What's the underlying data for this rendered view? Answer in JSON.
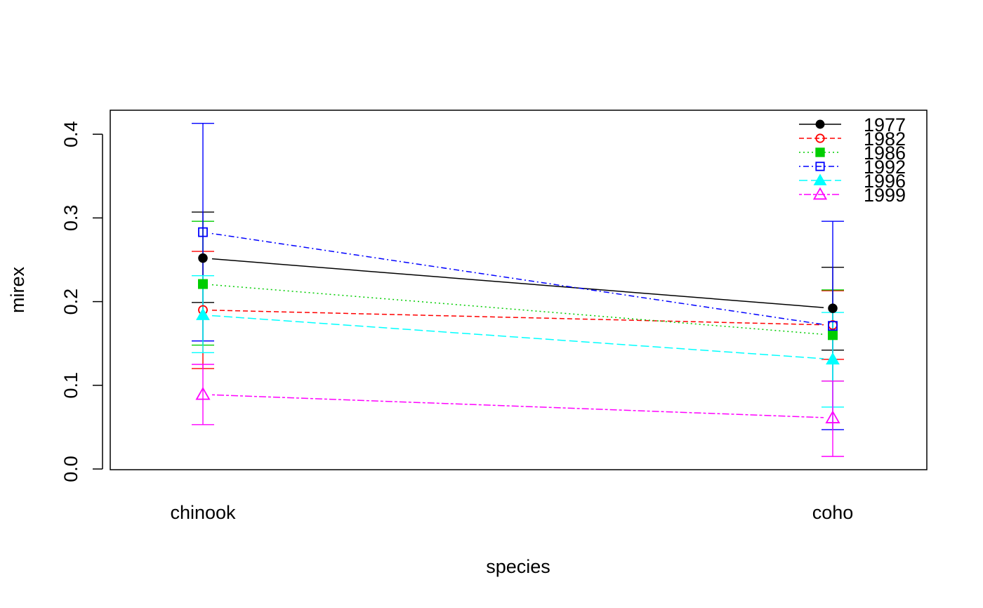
{
  "chart_data": {
    "type": "line",
    "xlabel": "species",
    "ylabel": "mirex",
    "categories": [
      "chinook",
      "coho"
    ],
    "ylim": [
      0,
      0.4
    ],
    "y_ticks": [
      "0.0",
      "0.1",
      "0.2",
      "0.3",
      "0.4"
    ],
    "grid": false,
    "legend_position": "top-right",
    "series": [
      {
        "name": "1977",
        "color": "#000000",
        "marker": "filled-circle",
        "line_style": "solid",
        "values": [
          0.252,
          0.192
        ],
        "lower": [
          0.199,
          0.142
        ],
        "upper": [
          0.307,
          0.241
        ]
      },
      {
        "name": "1982",
        "color": "#ff0000",
        "marker": "open-circle",
        "line_style": "dashed",
        "values": [
          0.19,
          0.172
        ],
        "lower": [
          0.12,
          0.131
        ],
        "upper": [
          0.26,
          0.213
        ]
      },
      {
        "name": "1986",
        "color": "#00cd00",
        "marker": "filled-square",
        "line_style": "dotted",
        "values": [
          0.221,
          0.16
        ],
        "lower": [
          0.148,
          0.105
        ],
        "upper": [
          0.296,
          0.214
        ]
      },
      {
        "name": "1992",
        "color": "#0000ff",
        "marker": "open-square",
        "line_style": "dotdash",
        "values": [
          0.283,
          0.171
        ],
        "lower": [
          0.153,
          0.047
        ],
        "upper": [
          0.413,
          0.296
        ]
      },
      {
        "name": "1996",
        "color": "#00ffff",
        "marker": "filled-triangle",
        "line_style": "longdash",
        "values": [
          0.184,
          0.131
        ],
        "lower": [
          0.139,
          0.074
        ],
        "upper": [
          0.231,
          0.187
        ]
      },
      {
        "name": "1999",
        "color": "#ff00ff",
        "marker": "open-triangle",
        "line_style": "twodash",
        "values": [
          0.089,
          0.061
        ],
        "lower": [
          0.053,
          0.015
        ],
        "upper": [
          0.125,
          0.105
        ]
      }
    ]
  }
}
